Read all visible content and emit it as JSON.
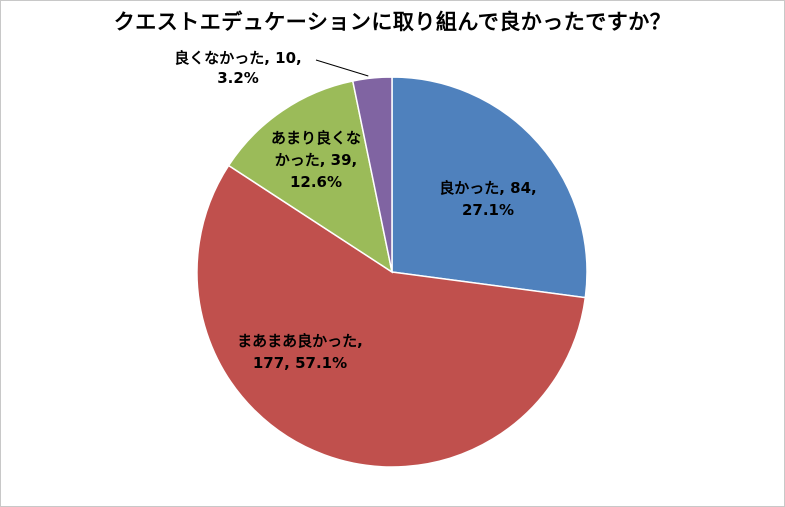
{
  "chart_data": {
    "type": "pie",
    "title": "クエストエデュケーションに取り組んで良かったですか？",
    "slices": [
      {
        "category": "良かった",
        "value": 84,
        "percent": "27.1%",
        "color": "#4f81bd",
        "label_lines": [
          "良かった, 84,",
          "27.1%"
        ]
      },
      {
        "category": "まあまあ良かった",
        "value": 177,
        "percent": "57.1%",
        "color": "#c0504d",
        "label_lines": [
          "まあまあ良かった,",
          "177, 57.1%"
        ]
      },
      {
        "category": "あまり良くなかった",
        "value": 39,
        "percent": "12.6%",
        "color": "#9bbb59",
        "label_lines": [
          "あまり良くな",
          "かった, 39,",
          "12.6%"
        ]
      },
      {
        "category": "良くなかった",
        "value": 10,
        "percent": "3.2%",
        "color": "#8064a2",
        "label_lines": [
          "良くなかった, 10,",
          "3.2%"
        ]
      }
    ],
    "start_angle_deg": 0,
    "direction": "clockwise",
    "legend": "none"
  }
}
